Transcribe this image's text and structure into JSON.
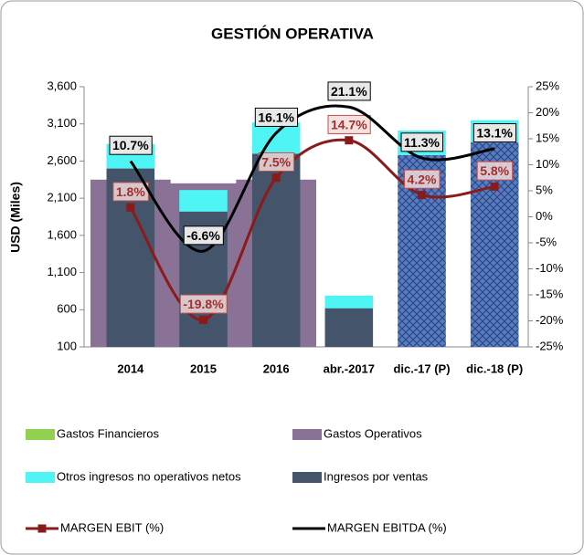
{
  "chart_data": {
    "type": "combo",
    "title": "GESTIÓN OPERATIVA",
    "y_label": "USD (Miles)",
    "categories": [
      "2014",
      "2015",
      "2016",
      "abr.-2017",
      "dic.-17 (P)",
      "dic.-18 (P)"
    ],
    "hatched": [
      false,
      false,
      false,
      false,
      true,
      true
    ],
    "ylim": [
      100,
      3600
    ],
    "yticks": [
      {
        "value": 100,
        "label": "100"
      },
      {
        "value": 600,
        "label": "600"
      },
      {
        "value": 1100,
        "label": "1,100"
      },
      {
        "value": 1600,
        "label": "1,600"
      },
      {
        "value": 2100,
        "label": "2,100"
      },
      {
        "value": 2600,
        "label": "2,600"
      },
      {
        "value": 3100,
        "label": "3,100"
      },
      {
        "value": 3600,
        "label": "3,600"
      }
    ],
    "y2lim": [
      -25,
      25
    ],
    "y2ticks": [
      {
        "value": 25,
        "label": "25%"
      },
      {
        "value": 20,
        "label": "20%"
      },
      {
        "value": 15,
        "label": "15%"
      },
      {
        "value": 10,
        "label": "10%"
      },
      {
        "value": 5,
        "label": "5%"
      },
      {
        "value": 0,
        "label": "0%"
      },
      {
        "value": -5,
        "label": "-5%"
      },
      {
        "value": -10,
        "label": "-10%"
      },
      {
        "value": -15,
        "label": "-15%"
      },
      {
        "value": -20,
        "label": "-20%"
      },
      {
        "value": -25,
        "label": "-25%"
      }
    ],
    "series": [
      {
        "name": "Gastos Financieros",
        "kind": "bar",
        "color": "#92d050",
        "values": [
          null,
          null,
          null,
          null,
          null,
          null
        ]
      },
      {
        "name": "Gastos Operativos",
        "kind": "wide-bar",
        "color": "#8a7196",
        "values": [
          2350,
          2300,
          2350,
          null,
          null,
          null
        ]
      },
      {
        "name": "Otros ingresos no operativos netos",
        "kind": "stack",
        "color": "#4ff5f5",
        "values": [
          330,
          290,
          420,
          170,
          330,
          300
        ]
      },
      {
        "name": "Ingresos por ventas",
        "kind": "bar",
        "color": "#44546a",
        "values": [
          2500,
          1920,
          2700,
          620,
          2680,
          2850
        ]
      },
      {
        "name": "MARGEN EBIT (%)",
        "kind": "line",
        "axis": "y2",
        "color": "#8b1a1a",
        "values": [
          1.8,
          -19.8,
          7.5,
          14.7,
          4.2,
          5.8
        ],
        "value_labels": [
          "1.8%",
          "-19.8%",
          "7.5%",
          "14.7%",
          "4.2%",
          "5.8%"
        ]
      },
      {
        "name": "MARGEN EBITDA (%)",
        "kind": "line",
        "axis": "y2",
        "color": "#000000",
        "values": [
          10.7,
          -6.6,
          16.1,
          21.1,
          11.3,
          13.1
        ],
        "value_labels": [
          "10.7%",
          "-6.6%",
          "16.1%",
          "21.1%",
          "11.3%",
          "13.1%"
        ]
      }
    ]
  }
}
